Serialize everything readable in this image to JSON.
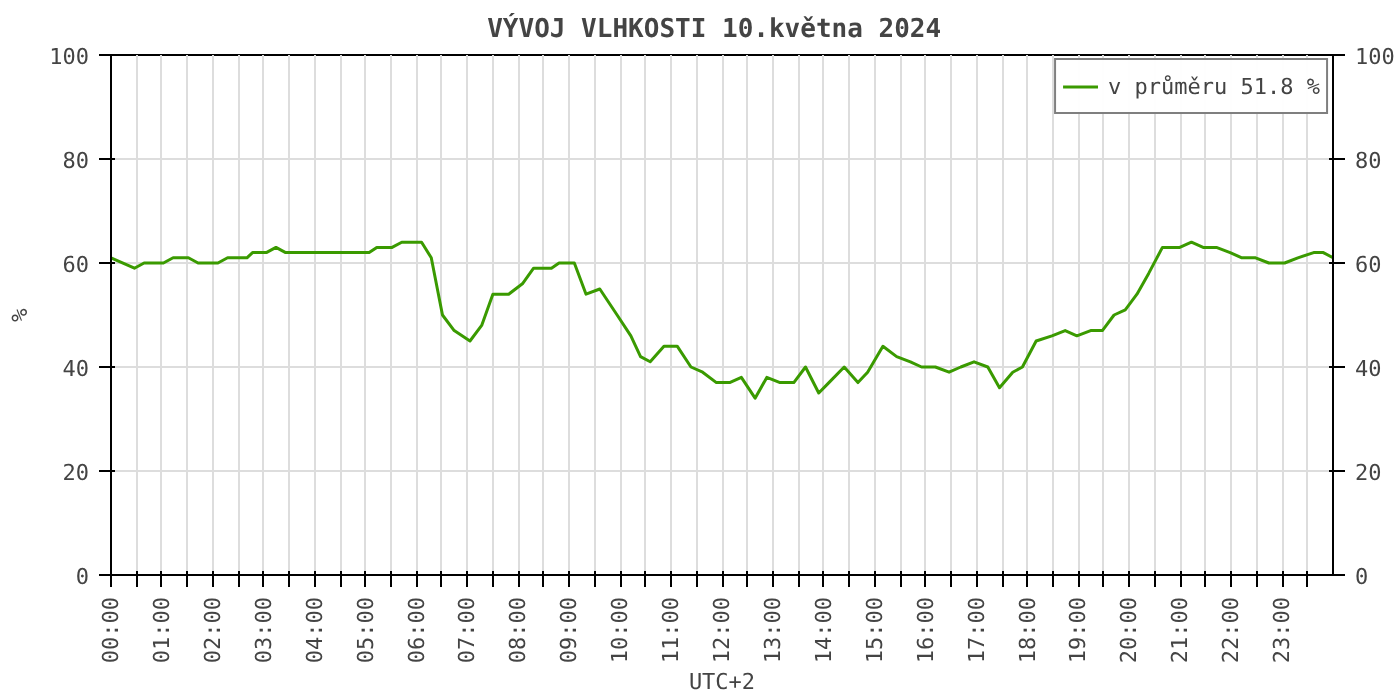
{
  "chart_data": {
    "type": "line",
    "title": "VÝVOJ VLHKOSTI  10.května 2024",
    "ylabel": "%",
    "xlabel": "UTC+2",
    "series": [
      {
        "name": "v průměru 51.8 %",
        "color": "#3a9a00",
        "x": [
          0,
          0.46,
          0.65,
          1.03,
          1.22,
          1.52,
          1.71,
          2.1,
          2.29,
          2.67,
          2.78,
          3.05,
          3.24,
          3.43,
          4.38,
          5.07,
          5.22,
          5.52,
          5.71,
          6.1,
          6.29,
          6.51,
          6.74,
          7.05,
          7.28,
          7.5,
          7.81,
          8.08,
          8.3,
          8.65,
          8.8,
          9.1,
          9.33,
          9.6,
          9.94,
          10.21,
          10.4,
          10.59,
          10.86,
          11.12,
          11.39,
          11.62,
          11.89,
          12.15,
          12.38,
          12.65,
          12.88,
          13.14,
          13.41,
          13.64,
          13.9,
          14.1,
          14.4,
          14.67,
          14.86,
          15.16,
          15.43,
          15.7,
          15.92,
          16.19,
          16.46,
          16.69,
          16.95,
          17.22,
          17.45,
          17.71,
          17.9,
          18.17,
          18.48,
          18.74,
          18.97,
          19.24,
          19.47,
          19.7,
          19.92,
          20.15,
          20.38,
          20.65,
          20.99,
          21.22,
          21.45,
          21.71,
          21.98,
          22.21,
          22.48,
          22.74,
          23.05,
          23.31,
          23.62,
          23.81,
          24
        ],
        "values": [
          61,
          59,
          60,
          60,
          61,
          61,
          60,
          60,
          61,
          61,
          62,
          62,
          63,
          62,
          62,
          62,
          63,
          63,
          64,
          64,
          61,
          50,
          47,
          45,
          48,
          54,
          54,
          56,
          59,
          59,
          60,
          60,
          54,
          55,
          50,
          46,
          42,
          41,
          44,
          44,
          40,
          39,
          37,
          37,
          38,
          34,
          38,
          37,
          37,
          40,
          35,
          37,
          40,
          37,
          39,
          44,
          42,
          41,
          40,
          40,
          39,
          40,
          41,
          40,
          36,
          39,
          40,
          45,
          46,
          47,
          46,
          47,
          47,
          50,
          51,
          54,
          58,
          63,
          63,
          64,
          63,
          63,
          62,
          61,
          61,
          60,
          60,
          61,
          62,
          62,
          61
        ]
      }
    ],
    "xlim": [
      0,
      24
    ],
    "xticks": [
      {
        "value": 0,
        "label": "00:00"
      },
      {
        "value": 0.5,
        "label": null
      },
      {
        "value": 1,
        "label": "01:00"
      },
      {
        "value": 1.5,
        "label": null
      },
      {
        "value": 2,
        "label": "02:00"
      },
      {
        "value": 2.5,
        "label": null
      },
      {
        "value": 3,
        "label": "03:00"
      },
      {
        "value": 3.5,
        "label": null
      },
      {
        "value": 4,
        "label": "04:00"
      },
      {
        "value": 4.5,
        "label": null
      },
      {
        "value": 5,
        "label": "05:00"
      },
      {
        "value": 5.5,
        "label": null
      },
      {
        "value": 6,
        "label": "06:00"
      },
      {
        "value": 6.5,
        "label": null
      },
      {
        "value": 7,
        "label": "07:00"
      },
      {
        "value": 7.5,
        "label": null
      },
      {
        "value": 8,
        "label": "08:00"
      },
      {
        "value": 8.5,
        "label": null
      },
      {
        "value": 9,
        "label": "09:00"
      },
      {
        "value": 9.5,
        "label": null
      },
      {
        "value": 10,
        "label": "10:00"
      },
      {
        "value": 10.5,
        "label": null
      },
      {
        "value": 11,
        "label": "11:00"
      },
      {
        "value": 11.5,
        "label": null
      },
      {
        "value": 12,
        "label": "12:00"
      },
      {
        "value": 12.5,
        "label": null
      },
      {
        "value": 13,
        "label": "13:00"
      },
      {
        "value": 13.5,
        "label": null
      },
      {
        "value": 14,
        "label": "14:00"
      },
      {
        "value": 14.5,
        "label": null
      },
      {
        "value": 15,
        "label": "15:00"
      },
      {
        "value": 15.5,
        "label": null
      },
      {
        "value": 16,
        "label": "16:00"
      },
      {
        "value": 16.5,
        "label": null
      },
      {
        "value": 17,
        "label": "17:00"
      },
      {
        "value": 17.5,
        "label": null
      },
      {
        "value": 18,
        "label": "18:00"
      },
      {
        "value": 18.5,
        "label": null
      },
      {
        "value": 19,
        "label": "19:00"
      },
      {
        "value": 19.5,
        "label": null
      },
      {
        "value": 20,
        "label": "20:00"
      },
      {
        "value": 20.5,
        "label": null
      },
      {
        "value": 21,
        "label": "21:00"
      },
      {
        "value": 21.5,
        "label": null
      },
      {
        "value": 22,
        "label": "22:00"
      },
      {
        "value": 22.5,
        "label": null
      },
      {
        "value": 23,
        "label": "23:00"
      },
      {
        "value": 23.5,
        "label": null
      }
    ],
    "ylim": [
      0,
      100
    ],
    "yticks": [
      0,
      20,
      40,
      60,
      80,
      100
    ],
    "y2lim": [
      0,
      100
    ],
    "y2ticks": [
      0,
      20,
      40,
      60,
      80,
      100
    ],
    "grid": true,
    "legend": "top right",
    "marker": "none",
    "line_style": "solid"
  }
}
